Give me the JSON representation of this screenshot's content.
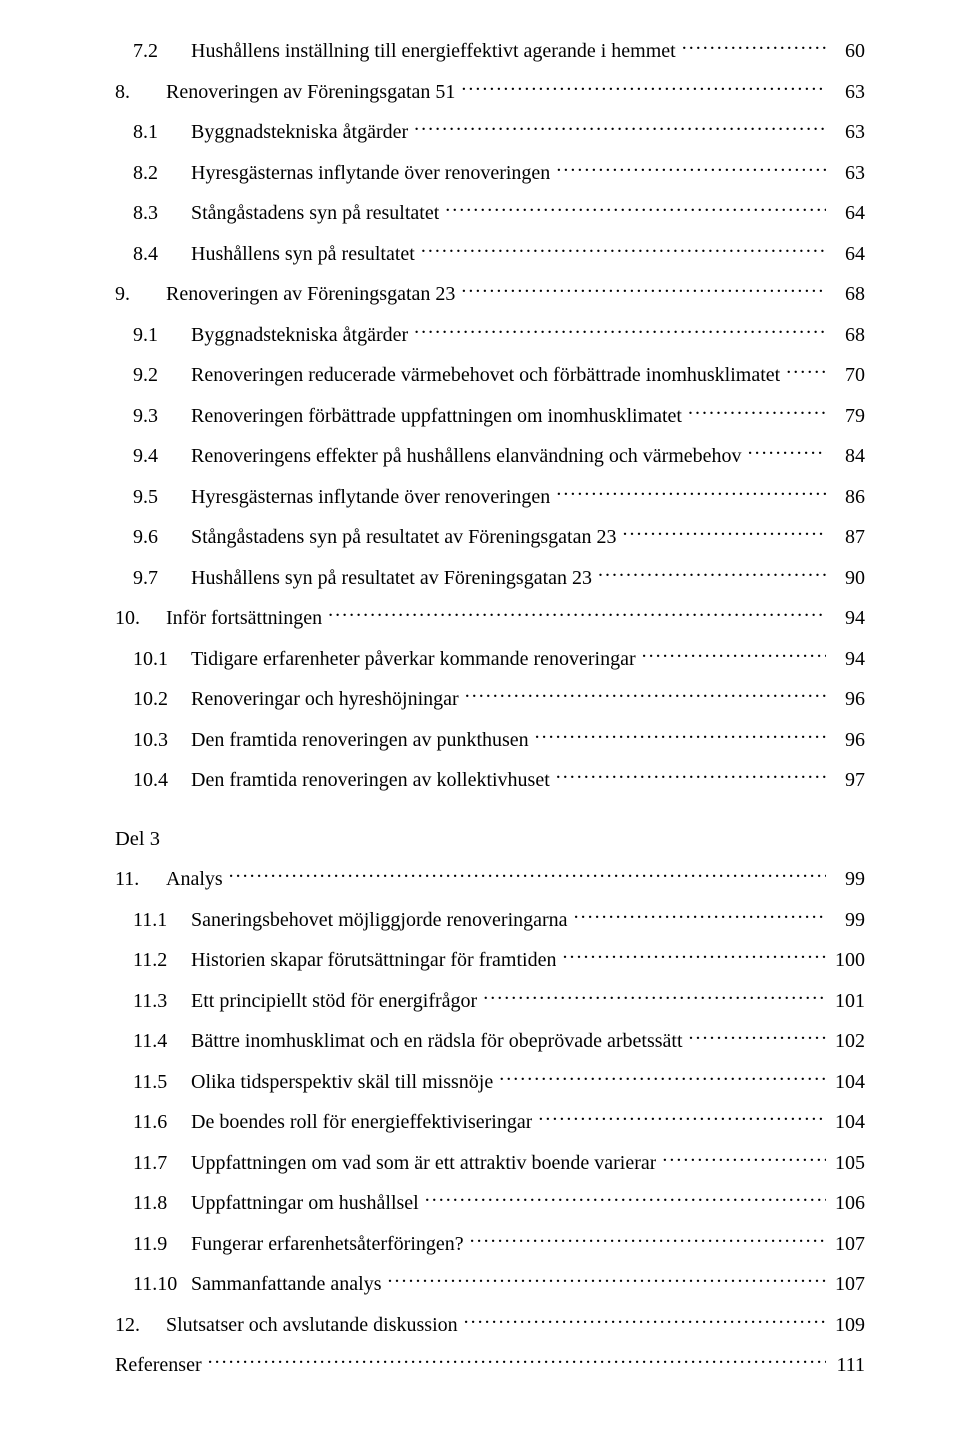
{
  "toc_group_a": [
    {
      "num": "7.2",
      "title": "Hushållens inställning till energieffektivt agerande i hemmet",
      "page": "60",
      "indent": 1
    },
    {
      "num": "8.",
      "title": "Renoveringen av Föreningsgatan 51",
      "page": "63",
      "indent": 0
    },
    {
      "num": "8.1",
      "title": "Byggnadstekniska åtgärder",
      "page": "63",
      "indent": 1
    },
    {
      "num": "8.2",
      "title": "Hyresgästernas inflytande över renoveringen",
      "page": "63",
      "indent": 1
    },
    {
      "num": "8.3",
      "title": "Stångåstadens syn på resultatet",
      "page": "64",
      "indent": 1
    },
    {
      "num": "8.4",
      "title": "Hushållens syn på resultatet",
      "page": "64",
      "indent": 1
    },
    {
      "num": "9.",
      "title": "Renoveringen av Föreningsgatan 23",
      "page": "68",
      "indent": 0
    },
    {
      "num": "9.1",
      "title": "Byggnadstekniska åtgärder",
      "page": "68",
      "indent": 1
    },
    {
      "num": "9.2",
      "title": "Renoveringen reducerade värmebehovet och förbättrade inomhusklimatet",
      "page": "70",
      "indent": 1
    },
    {
      "num": "9.3",
      "title": "Renoveringen förbättrade uppfattningen om inomhusklimatet",
      "page": "79",
      "indent": 1
    },
    {
      "num": "9.4",
      "title": "Renoveringens effekter på hushållens elanvändning och värmebehov",
      "page": "84",
      "indent": 1
    },
    {
      "num": "9.5",
      "title": "Hyresgästernas inflytande över renoveringen",
      "page": "86",
      "indent": 1
    },
    {
      "num": "9.6",
      "title": "Stångåstadens syn på resultatet av Föreningsgatan 23",
      "page": "87",
      "indent": 1
    },
    {
      "num": "9.7",
      "title": "Hushållens syn på resultatet av Föreningsgatan 23",
      "page": "90",
      "indent": 1
    },
    {
      "num": "10.",
      "title": "Inför fortsättningen",
      "page": "94",
      "indent": 0
    },
    {
      "num": "10.1",
      "title": "Tidigare erfarenheter påverkar kommande renoveringar",
      "page": "94",
      "indent": 1
    },
    {
      "num": "10.2",
      "title": "Renoveringar och hyreshöjningar",
      "page": "96",
      "indent": 1
    },
    {
      "num": "10.3",
      "title": "Den framtida renoveringen av punkthusen",
      "page": "96",
      "indent": 1
    },
    {
      "num": "10.4",
      "title": "Den framtida renoveringen av kollektivhuset",
      "page": "97",
      "indent": 1
    }
  ],
  "section_b_heading": "Del 3",
  "toc_group_b": [
    {
      "num": "11.",
      "title": "Analys",
      "page": "99",
      "indent": 0
    },
    {
      "num": "11.1",
      "title": "Saneringsbehovet möjliggjorde renoveringarna",
      "page": "99",
      "indent": 1
    },
    {
      "num": "11.2",
      "title": "Historien skapar förutsättningar för framtiden",
      "page": "100",
      "indent": 1
    },
    {
      "num": "11.3",
      "title": "Ett principiellt stöd för energifrågor",
      "page": "101",
      "indent": 1
    },
    {
      "num": "11.4",
      "title": "Bättre inomhusklimat och en rädsla för obeprövade arbetssätt",
      "page": "102",
      "indent": 1
    },
    {
      "num": "11.5",
      "title": "Olika tidsperspektiv skäl till missnöje",
      "page": "104",
      "indent": 1
    },
    {
      "num": "11.6",
      "title": "De boendes roll för energieffektiviseringar",
      "page": "104",
      "indent": 1
    },
    {
      "num": "11.7",
      "title": "Uppfattningen om vad som är ett attraktiv boende varierar",
      "page": "105",
      "indent": 1
    },
    {
      "num": "11.8",
      "title": "Uppfattningar om hushållsel",
      "page": "106",
      "indent": 1
    },
    {
      "num": "11.9",
      "title": "Fungerar erfarenhetsåterföringen?",
      "page": "107",
      "indent": 1
    },
    {
      "num": "11.10",
      "title": "Sammanfattande analys",
      "page": "107",
      "indent": 1
    },
    {
      "num": "12.",
      "title": "Slutsatser och avslutande diskussion",
      "page": "109",
      "indent": 0
    },
    {
      "num": "",
      "title": "Referenser",
      "page": "111",
      "indent": -1
    }
  ]
}
